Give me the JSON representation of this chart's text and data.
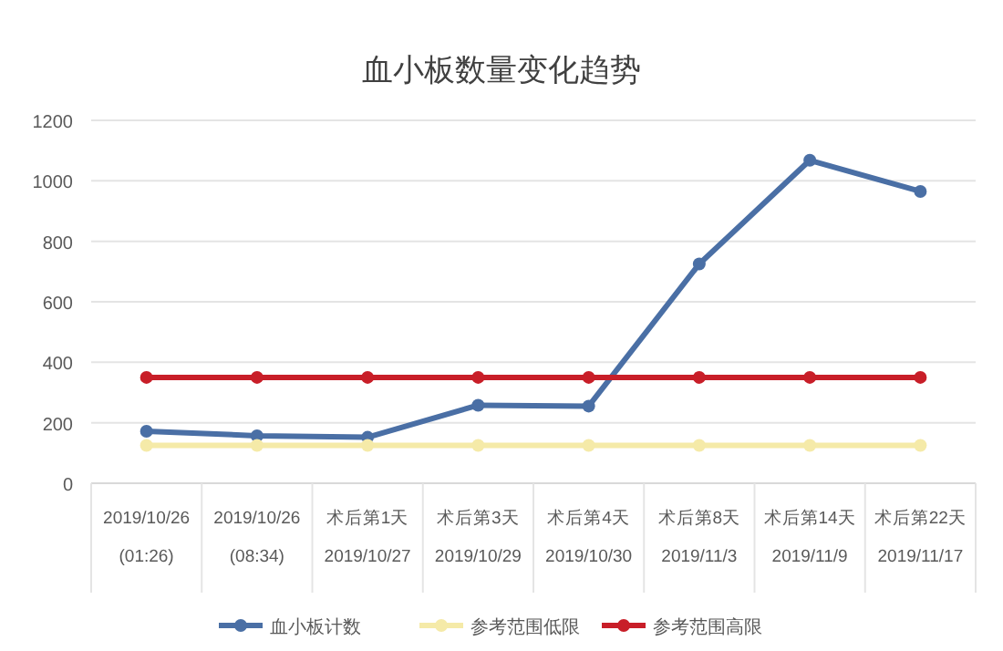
{
  "chart_data": {
    "type": "line",
    "title": "血小板数量变化趋势",
    "categories": [
      "2019/10/26\n(01:26)",
      "2019/10/26\n(08:34)",
      "术后第1天\n2019/10/27",
      "术后第3天\n2019/10/29",
      "术后第4天\n2019/10/30",
      "术后第8天\n2019/11/3",
      "术后第14天\n2019/11/9",
      "术后第22天\n2019/11/17"
    ],
    "series": [
      {
        "name": "血小板计数",
        "color": "#4a6fa5",
        "values": [
          172,
          157,
          152,
          258,
          255,
          725,
          1068,
          965
        ]
      },
      {
        "name": "参考范围低限",
        "color": "#f5eaa8",
        "values": [
          125,
          125,
          125,
          125,
          125,
          125,
          125,
          125
        ]
      },
      {
        "name": "参考范围高限",
        "color": "#c81e28",
        "values": [
          350,
          350,
          350,
          350,
          350,
          350,
          350,
          350
        ]
      }
    ],
    "ylim": [
      0,
      1200
    ],
    "yticks": [
      0,
      200,
      400,
      600,
      800,
      1000,
      1200
    ],
    "grid": "y",
    "legend": "bottom",
    "marker": "circle",
    "line_style": "solid"
  }
}
